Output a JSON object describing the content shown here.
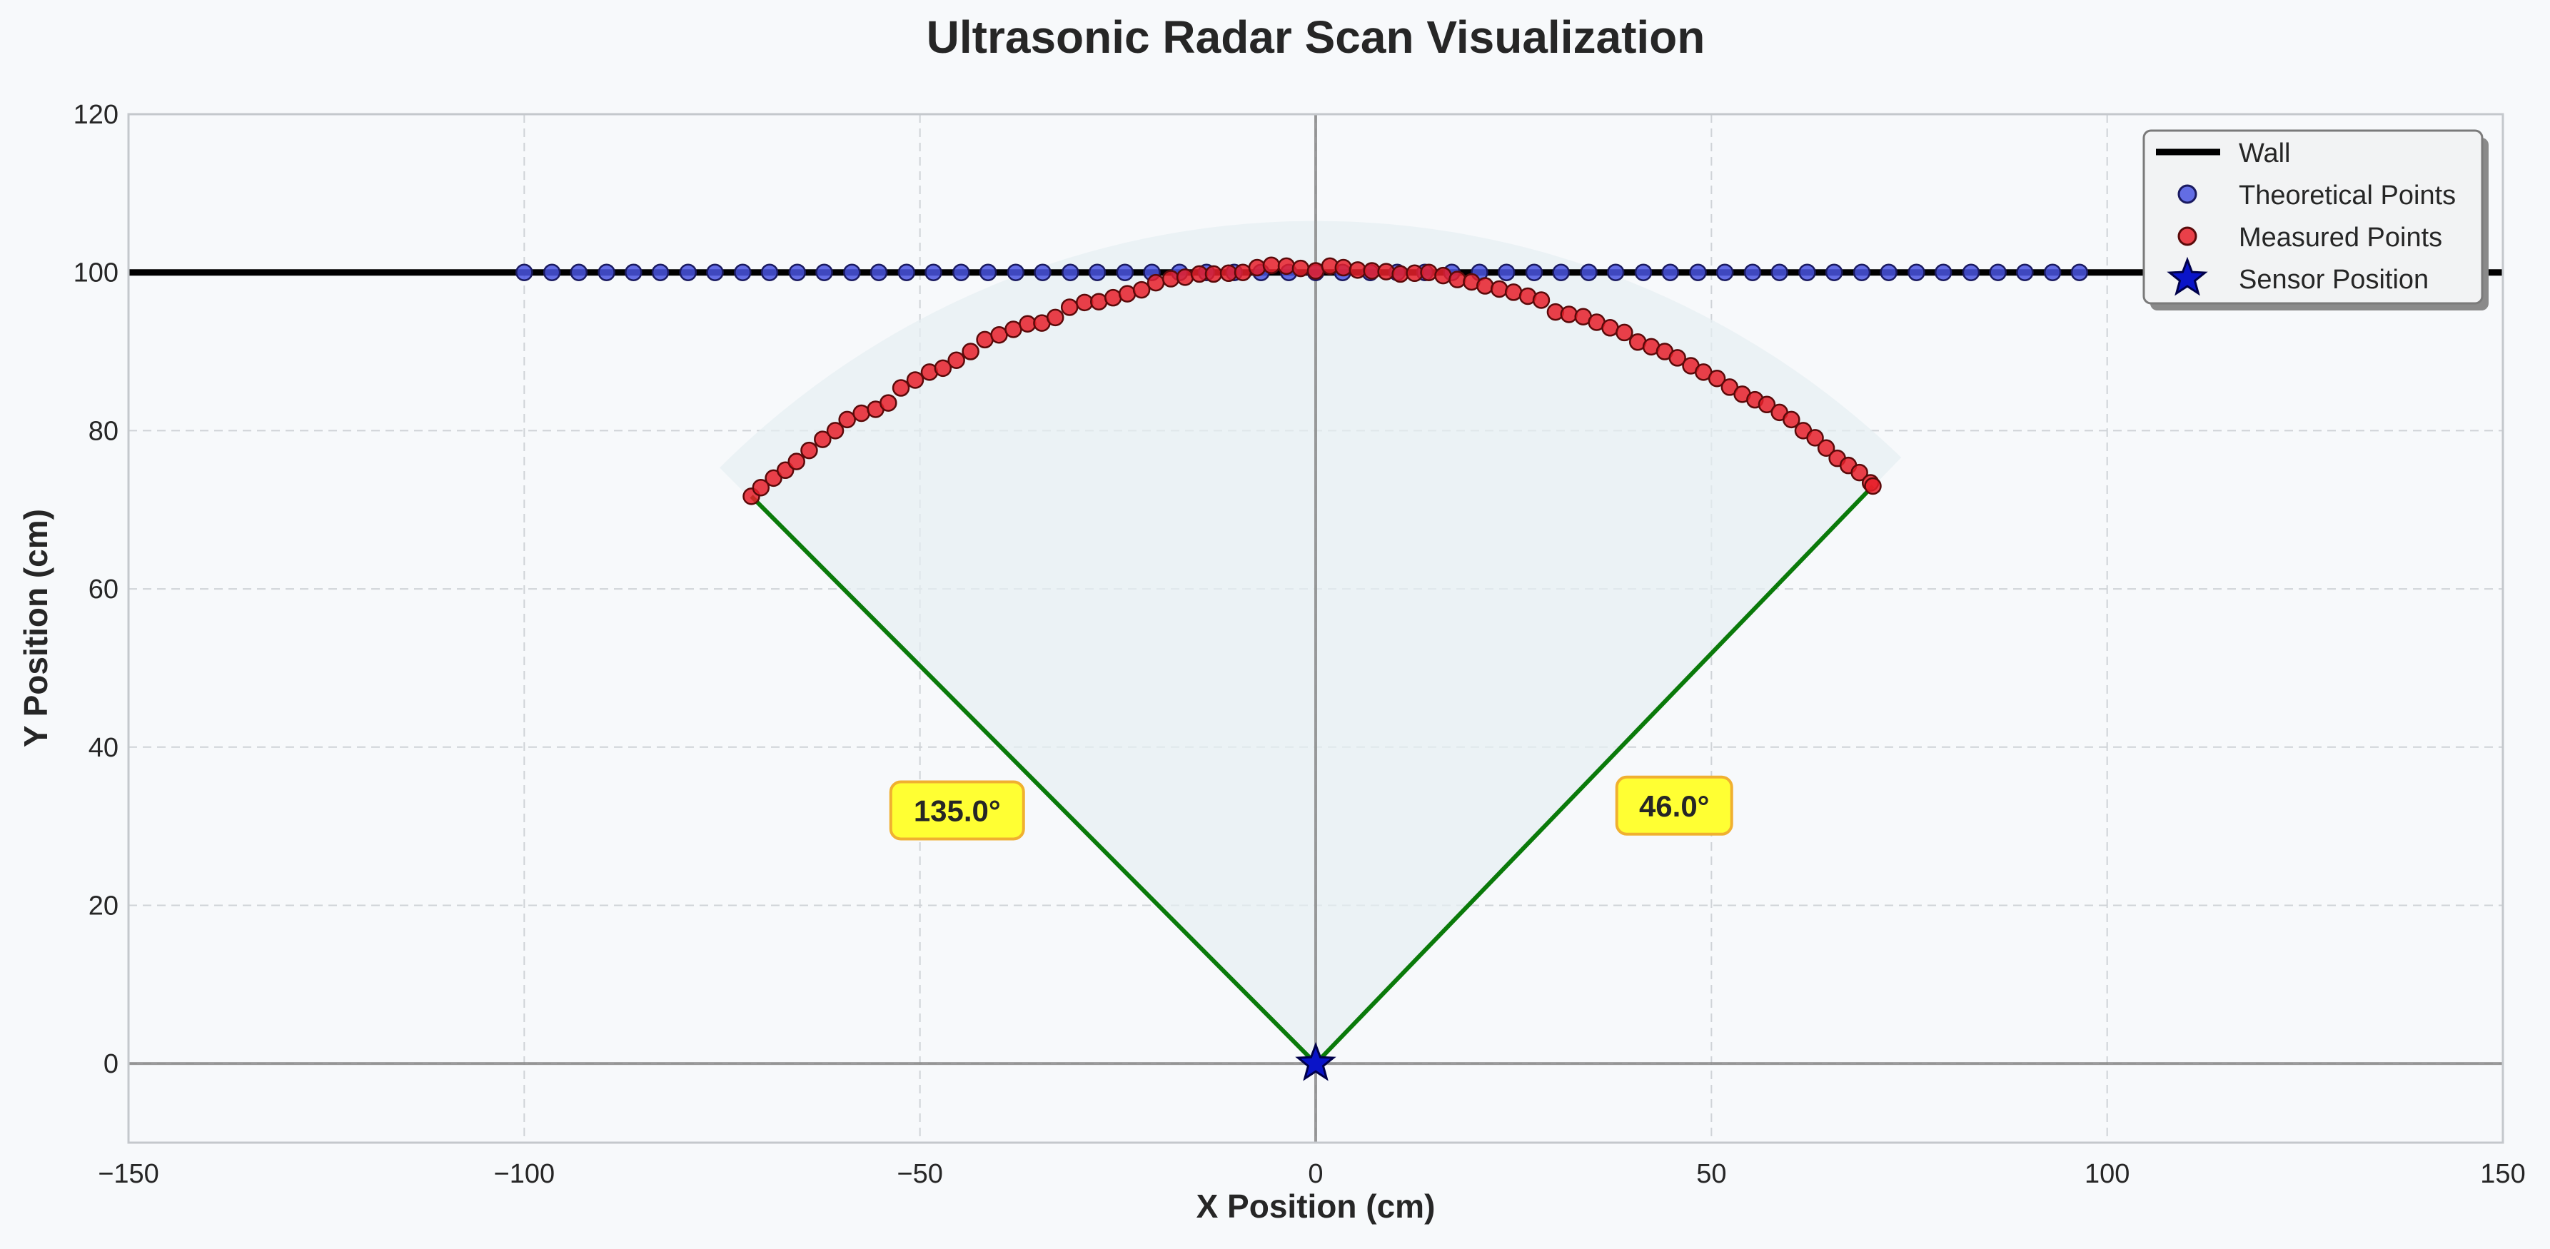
{
  "chart_data": {
    "type": "scatter",
    "title": "Ultrasonic Radar Scan Visualization",
    "xlabel": "X Position (cm)",
    "ylabel": "Y Position (cm)",
    "xlim": [
      -150,
      150
    ],
    "ylim": [
      -10,
      120
    ],
    "x_ticks": [
      -150,
      -100,
      -50,
      0,
      50,
      100,
      150
    ],
    "y_ticks": [
      0,
      20,
      40,
      60,
      80,
      100,
      120
    ],
    "x_tick_labels": [
      "−150",
      "−100",
      "−50",
      "0",
      "50",
      "100",
      "150"
    ],
    "y_tick_labels": [
      "0",
      "20",
      "40",
      "60",
      "80",
      "100",
      "120"
    ],
    "grid": true,
    "legend_position": "top-right",
    "wall": {
      "y": 100,
      "color": "#000000"
    },
    "sensor": {
      "x": 0,
      "y": 0,
      "color": "#0a14c8"
    },
    "scan_angles": {
      "start_deg": 46.0,
      "end_deg": 135.0,
      "beam_color": "#0a7a0a"
    },
    "theoretical_points": {
      "x": [
        -100,
        -96.5,
        -93.1,
        -89.6,
        -86.2,
        -82.8,
        -79.3,
        -75.9,
        -72.4,
        -69.0,
        -65.5,
        -62.1,
        -58.6,
        -55.2,
        -51.7,
        -48.3,
        -44.8,
        -41.4,
        -37.9,
        -34.5,
        -31.0,
        -27.6,
        -24.1,
        -20.7,
        -17.2,
        -13.8,
        -10.3,
        -6.9,
        -3.4,
        0,
        3.4,
        6.9,
        10.3,
        13.8,
        17.2,
        20.7,
        24.1,
        27.6,
        31.0,
        34.5,
        37.9,
        41.4,
        44.8,
        48.3,
        51.7,
        55.2,
        58.6,
        62.1,
        65.5,
        69.0,
        72.4,
        75.9,
        79.3,
        82.8,
        86.2,
        89.6,
        93.1,
        96.5
      ],
      "y": 100,
      "color": "#4a55e0"
    },
    "measured_points": {
      "x": [
        -71.3,
        -70.1,
        -68.5,
        -67.0,
        -65.6,
        -64.0,
        -62.3,
        -60.7,
        -59.2,
        -57.4,
        -55.6,
        -54.0,
        -52.4,
        -50.6,
        -48.8,
        -47.1,
        -45.4,
        -43.6,
        -41.8,
        -40.0,
        -38.2,
        -36.4,
        -34.6,
        -32.9,
        -31.1,
        -29.2,
        -27.4,
        -25.6,
        -23.8,
        -22.0,
        -20.2,
        -18.3,
        -16.5,
        -14.7,
        -12.9,
        -11.0,
        -9.2,
        -7.4,
        -5.6,
        -3.7,
        -1.9,
        0.0,
        1.8,
        3.5,
        5.3,
        7.1,
        8.9,
        10.7,
        12.5,
        14.3,
        16.1,
        17.9,
        19.7,
        21.4,
        23.2,
        25.0,
        26.8,
        28.5,
        30.3,
        32.0,
        33.8,
        35.5,
        37.2,
        39.0,
        40.7,
        42.4,
        44.1,
        45.7,
        47.4,
        49.0,
        50.7,
        52.3,
        53.9,
        55.5,
        57.0,
        58.6,
        60.1,
        61.6,
        63.1,
        64.5,
        65.9,
        67.3,
        68.7,
        70.1,
        70.4
      ],
      "y": [
        71.7,
        72.8,
        74.0,
        75.0,
        76.1,
        77.5,
        78.9,
        80.0,
        81.4,
        82.2,
        82.7,
        83.5,
        85.4,
        86.4,
        87.4,
        87.9,
        88.9,
        90.0,
        91.5,
        92.1,
        92.8,
        93.5,
        93.6,
        94.3,
        95.6,
        96.2,
        96.3,
        96.8,
        97.3,
        97.8,
        98.7,
        99.2,
        99.4,
        99.8,
        99.8,
        99.9,
        100.0,
        100.6,
        100.9,
        100.8,
        100.5,
        100.2,
        100.8,
        100.6,
        100.3,
        100.2,
        100.1,
        99.8,
        99.9,
        100.0,
        99.6,
        99.1,
        98.8,
        98.3,
        97.9,
        97.5,
        97.0,
        96.5,
        95.0,
        94.7,
        94.4,
        93.7,
        93.0,
        92.4,
        91.2,
        90.6,
        90.0,
        89.2,
        88.2,
        87.4,
        86.6,
        85.5,
        84.6,
        83.9,
        83.3,
        82.3,
        81.4,
        80.0,
        79.1,
        77.8,
        76.5,
        75.6,
        74.7,
        73.4,
        73.0
      ],
      "color": "#e8202a"
    },
    "annotations": [
      {
        "text": "135.0°",
        "x": -45.3,
        "y": 32
      },
      {
        "text": "46.0°",
        "x": 45.3,
        "y": 32.6
      }
    ],
    "legend": [
      {
        "label": "Wall",
        "kind": "line",
        "color": "#000000"
      },
      {
        "label": "Theoretical Points",
        "kind": "circle",
        "color": "#4a55e0"
      },
      {
        "label": "Measured Points",
        "kind": "circle",
        "color": "#e8202a"
      },
      {
        "label": "Sensor Position",
        "kind": "star",
        "color": "#0a14c8"
      }
    ]
  }
}
